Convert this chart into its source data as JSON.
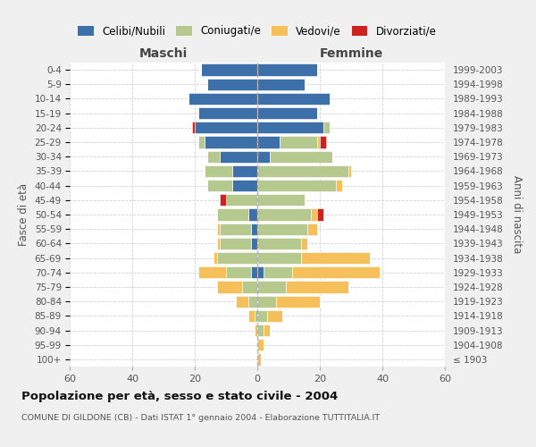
{
  "age_groups": [
    "100+",
    "95-99",
    "90-94",
    "85-89",
    "80-84",
    "75-79",
    "70-74",
    "65-69",
    "60-64",
    "55-59",
    "50-54",
    "45-49",
    "40-44",
    "35-39",
    "30-34",
    "25-29",
    "20-24",
    "15-19",
    "10-14",
    "5-9",
    "0-4"
  ],
  "birth_years": [
    "≤ 1903",
    "1904-1908",
    "1909-1913",
    "1914-1918",
    "1919-1923",
    "1924-1928",
    "1929-1933",
    "1934-1938",
    "1939-1943",
    "1944-1948",
    "1949-1953",
    "1954-1958",
    "1959-1963",
    "1964-1968",
    "1969-1973",
    "1974-1978",
    "1979-1983",
    "1984-1988",
    "1989-1993",
    "1994-1998",
    "1999-2003"
  ],
  "maschi": {
    "celibi": [
      0,
      0,
      0,
      0,
      0,
      0,
      2,
      0,
      2,
      2,
      3,
      0,
      8,
      8,
      12,
      17,
      20,
      19,
      22,
      16,
      18
    ],
    "coniugati": [
      0,
      0,
      0,
      1,
      3,
      5,
      8,
      13,
      10,
      10,
      10,
      10,
      8,
      9,
      4,
      2,
      0,
      0,
      0,
      0,
      0
    ],
    "vedovi": [
      0,
      0,
      1,
      2,
      4,
      8,
      9,
      1,
      1,
      1,
      0,
      0,
      0,
      0,
      0,
      0,
      0,
      0,
      0,
      0,
      0
    ],
    "divorziati": [
      0,
      0,
      0,
      0,
      0,
      0,
      0,
      0,
      0,
      0,
      0,
      2,
      0,
      0,
      0,
      0,
      1,
      0,
      0,
      0,
      0
    ]
  },
  "femmine": {
    "nubili": [
      0,
      0,
      0,
      0,
      0,
      0,
      2,
      0,
      0,
      0,
      0,
      0,
      0,
      0,
      4,
      7,
      21,
      19,
      23,
      15,
      19
    ],
    "coniugate": [
      0,
      0,
      2,
      3,
      6,
      9,
      9,
      14,
      14,
      16,
      17,
      15,
      25,
      29,
      20,
      12,
      2,
      0,
      0,
      0,
      0
    ],
    "vedove": [
      1,
      2,
      2,
      5,
      14,
      20,
      28,
      22,
      2,
      3,
      2,
      0,
      2,
      1,
      0,
      1,
      0,
      0,
      0,
      0,
      0
    ],
    "divorziate": [
      0,
      0,
      0,
      0,
      0,
      0,
      0,
      0,
      0,
      0,
      2,
      0,
      0,
      0,
      0,
      2,
      0,
      0,
      0,
      0,
      0
    ]
  },
  "colors": {
    "celibi": "#3d6fa8",
    "coniugati": "#b5c98e",
    "vedovi": "#f5bf5a",
    "divorziati": "#cc2222"
  },
  "xlim": 60,
  "title": "Popolazione per età, sesso e stato civile - 2004",
  "subtitle": "COMUNE DI GILDONE (CB) - Dati ISTAT 1° gennaio 2004 - Elaborazione TUTTITALIA.IT",
  "xlabel_left": "Maschi",
  "xlabel_right": "Femmine",
  "ylabel_left": "Fasce di età",
  "ylabel_right": "Anni di nascita",
  "legend_labels": [
    "Celibi/Nubili",
    "Coniugati/e",
    "Vedovi/e",
    "Divorziati/e"
  ],
  "bg_color": "#f0f0f0",
  "plot_bg": "#ffffff",
  "grid_color": "#cccccc"
}
